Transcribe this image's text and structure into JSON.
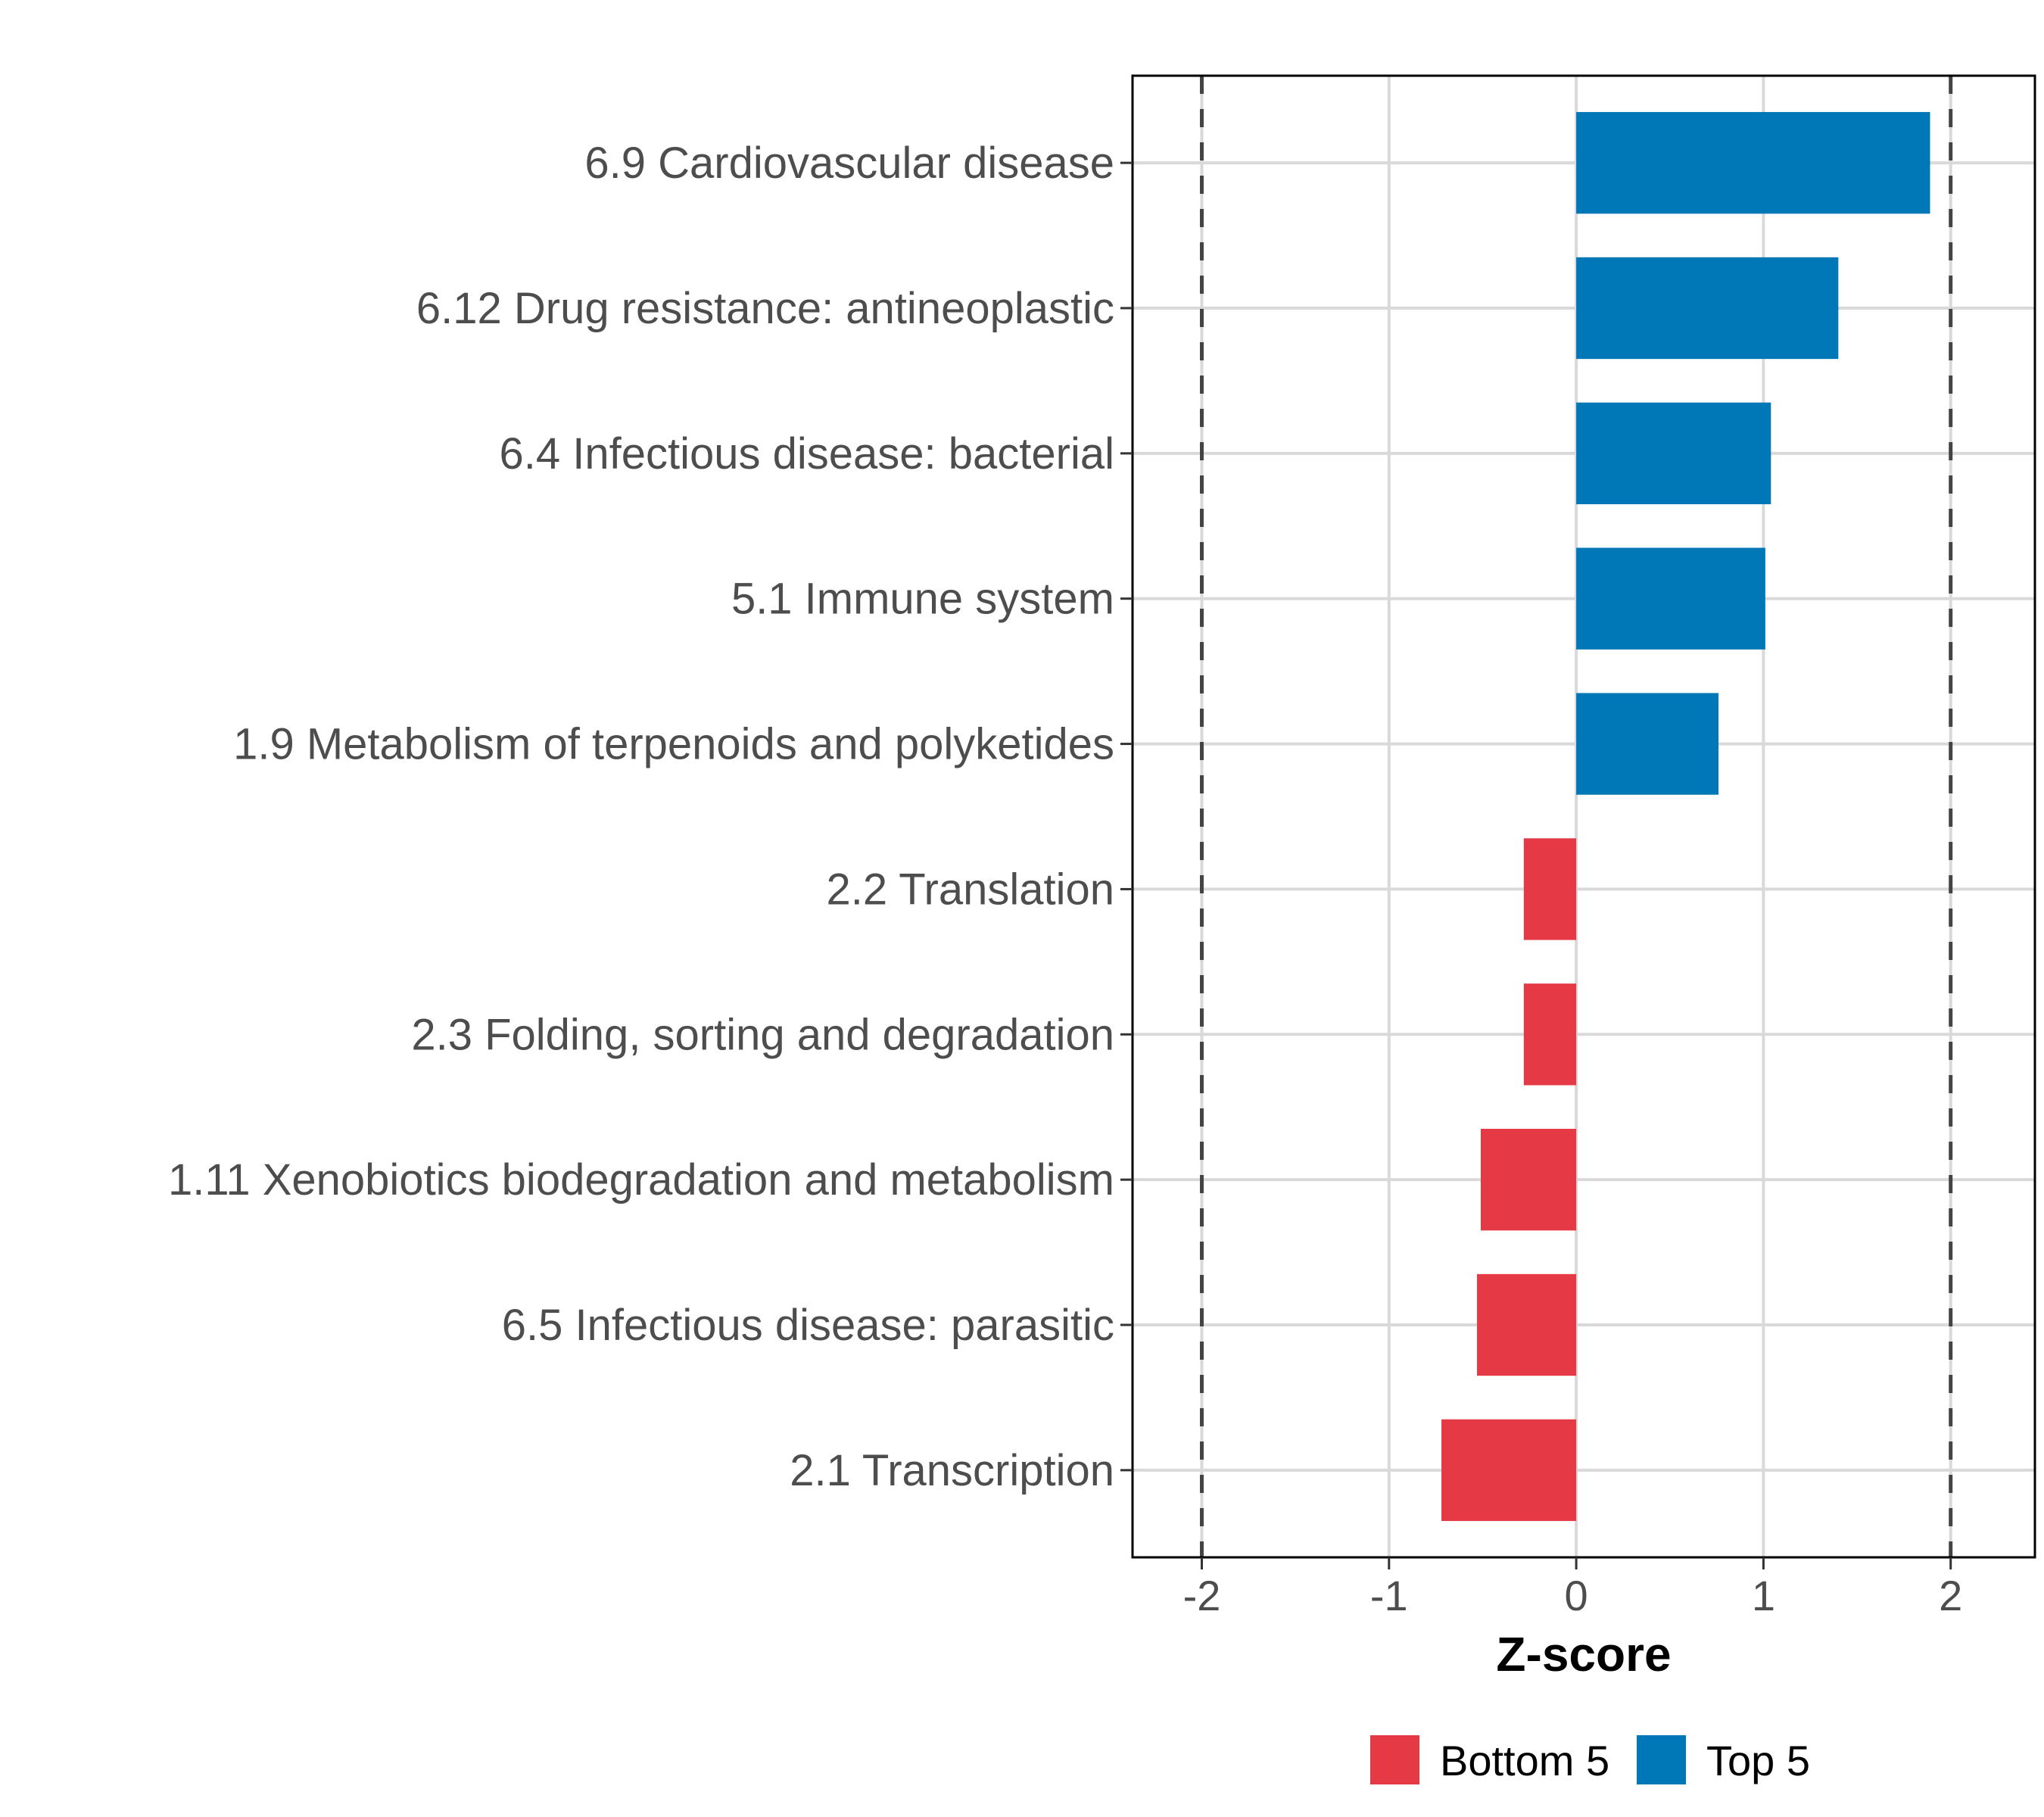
{
  "chart_data": {
    "type": "bar",
    "orientation": "horizontal",
    "title": "",
    "xlabel": "Z-score",
    "ylabel": "",
    "xlim": [
      -2.37,
      2.45
    ],
    "xticks": [
      -2,
      -1,
      0,
      1,
      2
    ],
    "xtick_labels": [
      "-2",
      "-1",
      "0",
      "1",
      "2"
    ],
    "reference_lines": [
      -2,
      2
    ],
    "grid": true,
    "categories": [
      "6.9 Cardiovascular disease",
      "6.12 Drug resistance: antineoplastic",
      "6.4 Infectious disease: bacterial",
      "5.1 Immune system",
      "1.9 Metabolism of terpenoids and polyketides",
      "2.2 Translation",
      "2.3 Folding, sorting and degradation",
      "1.11 Xenobiotics biodegradation and metabolism",
      "6.5 Infectious disease: parasitic",
      "2.1 Transcription"
    ],
    "values": [
      1.89,
      1.4,
      1.04,
      1.01,
      0.76,
      -0.28,
      -0.28,
      -0.51,
      -0.53,
      -0.72
    ],
    "groups": [
      "Top 5",
      "Top 5",
      "Top 5",
      "Top 5",
      "Top 5",
      "Bottom 5",
      "Bottom 5",
      "Bottom 5",
      "Bottom 5",
      "Bottom 5"
    ],
    "legend": {
      "placement": "bottom",
      "entries": [
        {
          "label": "Bottom 5",
          "color": "#E63946"
        },
        {
          "label": "Top 5",
          "color": "#0077B6"
        }
      ]
    }
  }
}
